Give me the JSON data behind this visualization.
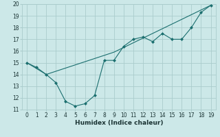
{
  "xlabel": "Humidex (Indice chaleur)",
  "xlim": [
    -0.5,
    19.5
  ],
  "ylim": [
    11,
    20
  ],
  "xticks": [
    0,
    1,
    2,
    3,
    4,
    5,
    6,
    7,
    8,
    9,
    10,
    11,
    12,
    13,
    14,
    15,
    16,
    17,
    18,
    19
  ],
  "yticks": [
    11,
    12,
    13,
    14,
    15,
    16,
    17,
    18,
    19,
    20
  ],
  "background_color": "#cce8e8",
  "grid_color": "#aacccc",
  "line_color": "#1a6e6e",
  "line1_x": [
    0,
    1,
    2,
    3,
    4,
    5,
    6,
    7,
    8,
    9,
    10,
    11,
    12,
    13,
    14,
    15,
    16,
    17,
    18,
    19
  ],
  "line1_y": [
    15.0,
    14.6,
    14.0,
    13.3,
    11.7,
    11.3,
    11.5,
    12.2,
    15.2,
    15.2,
    16.4,
    17.0,
    17.2,
    16.8,
    17.5,
    17.0,
    17.0,
    18.0,
    19.3,
    19.9
  ],
  "line2_x": [
    0,
    2,
    9,
    19
  ],
  "line2_y": [
    15.0,
    14.0,
    15.9,
    19.9
  ],
  "tick_fontsize": 5.5,
  "xlabel_fontsize": 6.5,
  "marker_size": 2.0
}
